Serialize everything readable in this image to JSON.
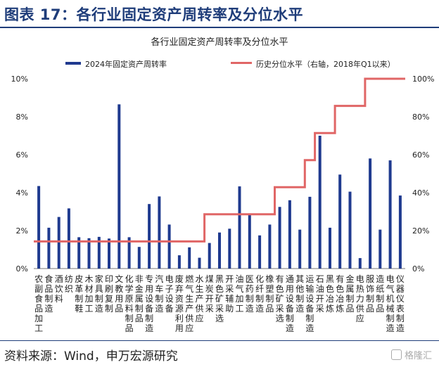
{
  "header": {
    "title": "图表 17：各行业固定资产周转率及分位水平"
  },
  "footer": {
    "source": "资料来源：Wind，申万宏源研究",
    "watermark": "格隆汇"
  },
  "colors": {
    "bar": "#1f3a8f",
    "line": "#e06666",
    "title": "#1f3d7a"
  },
  "chart_data": {
    "type": "bar",
    "title": "各行业固定资产周转率及分位水平",
    "categories": [
      "农副食品加工",
      "食品制造",
      "酒饮料",
      "纺织",
      "皮革制鞋",
      "木材加工",
      "家具制造",
      "印刷复制",
      "文教用品",
      "化学原料制品",
      "非金属制品",
      "专用设备制造",
      "汽车制造",
      "电子设备",
      "废弃资源利用",
      "燃气生产供应",
      "水生产供应",
      "煤炭开采",
      "黑色矿采选",
      "开采辅助",
      "油气加工",
      "医药制造",
      "化纤制造",
      "橡塑制品",
      "有色矿采选",
      "通用设备制造",
      "其他制造",
      "运输设备制造",
      "石油开采",
      "黑色冶炼",
      "有色冶炼",
      "金属制品",
      "电热力供应",
      "服饰制品",
      "造纸制品",
      "电气机械制造",
      "仪器仪表制造"
    ],
    "series": [
      {
        "name": "2024年固定资产周转率",
        "type": "bar",
        "axis": "left",
        "values": [
          4.35,
          2.15,
          2.72,
          3.17,
          1.65,
          1.6,
          1.67,
          1.58,
          8.65,
          1.65,
          1.14,
          3.4,
          3.8,
          2.32,
          0.7,
          1.12,
          0.57,
          1.35,
          1.9,
          2.1,
          4.33,
          2.82,
          1.75,
          2.32,
          3.25,
          3.6,
          2.05,
          3.78,
          7.0,
          2.15,
          4.95,
          4.05,
          0.55,
          5.8,
          2.05,
          5.7,
          3.85
        ]
      },
      {
        "name": "历史分位水平（右轴，2018年Q1以来）",
        "type": "line",
        "axis": "right",
        "values": [
          14.3,
          14.3,
          14.3,
          14.3,
          14.3,
          14.3,
          14.3,
          14.3,
          14.3,
          14.3,
          14.3,
          14.3,
          14.3,
          14.3,
          14.3,
          14.3,
          14.3,
          28.6,
          28.6,
          28.6,
          28.6,
          28.6,
          28.6,
          28.6,
          42.9,
          42.9,
          42.9,
          57.1,
          71.4,
          71.4,
          85.7,
          85.7,
          85.7,
          100,
          100,
          100,
          100
        ]
      }
    ],
    "yleft": {
      "ylim": [
        0,
        10
      ],
      "ticks": [
        "0%",
        "2%",
        "4%",
        "6%",
        "8%",
        "10%"
      ]
    },
    "yright": {
      "ylim": [
        0,
        100
      ],
      "ticks": [
        "0%",
        "20%",
        "40%",
        "60%",
        "80%",
        "100%"
      ]
    },
    "legend": "top"
  }
}
